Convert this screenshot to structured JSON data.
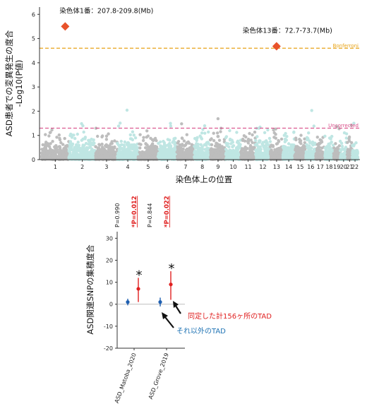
{
  "chart_data": [
    {
      "type": "scatter",
      "subtype": "manhattan",
      "xlabel": "染色体上の位置",
      "ylabel": "ASD患者での変異発生の度合\n-Log10(P値)",
      "ylabel_lines": [
        "ASD患者での変異発生の度合",
        "-Log10(P値)"
      ],
      "ylim": [
        0,
        6.3
      ],
      "yticks": [
        0,
        1,
        2,
        3,
        4,
        5,
        6
      ],
      "chromosomes": [
        "1",
        "2",
        "3",
        "4",
        "5",
        "6",
        "7",
        "8",
        "9",
        "10",
        "11",
        "12",
        "13",
        "14",
        "15",
        "16",
        "17",
        "18",
        "19",
        "20",
        "21",
        "22"
      ],
      "colors": {
        "odd": "#bdbdbd",
        "even": "#bfe6e3",
        "highlight": "#e8522a",
        "bonferroni": "#e8a317",
        "uncorrected": "#d94f8a"
      },
      "thresholds": [
        {
          "name": "Bonferroni",
          "y": 4.6
        },
        {
          "name": "Uncorrected",
          "y": 1.3
        }
      ],
      "highlights": [
        {
          "label": "染色体1番：207.8-209.8(Mb)",
          "chrom": "1",
          "y": 5.5
        },
        {
          "label": "染色体13番：72.7-73.7(Mb)",
          "chrom": "13",
          "y": 4.68
        }
      ]
    },
    {
      "type": "scatter",
      "subtype": "point-errorbar",
      "ylabel": "ASD関連SNPの集積度合",
      "ylim": [
        -20,
        33
      ],
      "yticks": [
        -20,
        -10,
        0,
        10,
        20,
        30
      ],
      "categories": [
        "ASD_Matoba_2020",
        "ASD_Grove_2019"
      ],
      "series": [
        {
          "name": "それ以外のTAD",
          "color": "#1f5fb0",
          "values": [
            1,
            1
          ],
          "lower": [
            -0.5,
            -1
          ],
          "upper": [
            2.5,
            3
          ]
        },
        {
          "name": "同定した計156ヶ所のTAD",
          "color": "#e02020",
          "values": [
            7,
            9
          ],
          "lower": [
            1,
            2
          ],
          "upper": [
            12,
            15
          ]
        }
      ],
      "pvalues": [
        {
          "category": "ASD_Matoba_2020",
          "other": "P=0.990",
          "tad": "*P=0.012"
        },
        {
          "category": "ASD_Grove_2019",
          "other": "P=0.844",
          "tad": "*P=0.022"
        }
      ],
      "significance_marker": "*"
    }
  ]
}
